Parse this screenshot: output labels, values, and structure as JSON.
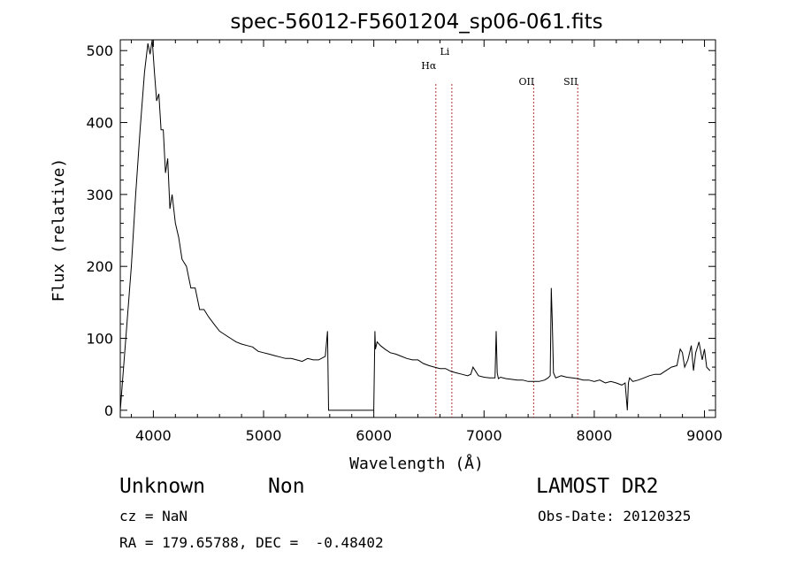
{
  "chart_data": {
    "type": "line",
    "title": "spec-56012-F5601204_sp06-061.fits",
    "xlabel": "Wavelength (Å)",
    "ylabel": "Flux (relative)",
    "xlim": [
      3700,
      9100
    ],
    "ylim": [
      -10,
      515
    ],
    "xticks": [
      4000,
      5000,
      6000,
      7000,
      8000,
      9000
    ],
    "yticks": [
      0,
      100,
      200,
      300,
      400,
      500
    ],
    "grid": false,
    "series": [
      {
        "x": [
          3700,
          3720,
          3760,
          3800,
          3840,
          3880,
          3920,
          3950,
          3970,
          3990,
          4010,
          4030,
          4050,
          4070,
          4090,
          4110,
          4130,
          4150,
          4170,
          4200,
          4230,
          4260,
          4300,
          4340,
          4380,
          4420,
          4460,
          4500,
          4550,
          4600,
          4650,
          4700,
          4750,
          4800,
          4850,
          4900,
          4950,
          5000,
          5050,
          5100,
          5150,
          5200,
          5250,
          5300,
          5350,
          5400,
          5450,
          5500,
          5560,
          5580,
          5590,
          5600,
          5800,
          6000,
          6010,
          6015,
          6030,
          6060,
          6100,
          6150,
          6200,
          6250,
          6300,
          6350,
          6400,
          6450,
          6500,
          6550,
          6600,
          6650,
          6700,
          6750,
          6800,
          6850,
          6880,
          6900,
          6950,
          7000,
          7050,
          7100,
          7110,
          7120,
          7130,
          7150,
          7200,
          7250,
          7300,
          7350,
          7400,
          7450,
          7500,
          7550,
          7580,
          7600,
          7610,
          7620,
          7630,
          7650,
          7700,
          7750,
          7800,
          7850,
          7900,
          7950,
          8000,
          8050,
          8100,
          8150,
          8200,
          8250,
          8280,
          8290,
          8300,
          8310,
          8320,
          8350,
          8400,
          8450,
          8500,
          8550,
          8600,
          8650,
          8700,
          8750,
          8780,
          8800,
          8820,
          8850,
          8880,
          8900,
          8920,
          8950,
          8980,
          9000,
          9020,
          9050
        ],
        "values": [
          0,
          40,
          120,
          200,
          300,
          390,
          470,
          510,
          495,
          515,
          470,
          430,
          440,
          390,
          390,
          330,
          350,
          280,
          300,
          260,
          240,
          210,
          200,
          170,
          170,
          140,
          140,
          130,
          120,
          110,
          105,
          100,
          95,
          92,
          90,
          88,
          82,
          80,
          78,
          76,
          74,
          72,
          72,
          70,
          68,
          72,
          70,
          70,
          75,
          110,
          0,
          0,
          0,
          0,
          110,
          85,
          95,
          90,
          85,
          80,
          78,
          75,
          72,
          70,
          70,
          65,
          62,
          60,
          58,
          58,
          54,
          52,
          50,
          48,
          50,
          60,
          48,
          46,
          45,
          45,
          110,
          52,
          44,
          46,
          44,
          43,
          42,
          42,
          40,
          40,
          40,
          42,
          45,
          48,
          170,
          120,
          52,
          45,
          48,
          46,
          45,
          44,
          42,
          42,
          40,
          42,
          38,
          40,
          38,
          35,
          38,
          20,
          0,
          38,
          45,
          40,
          42,
          45,
          48,
          50,
          50,
          55,
          60,
          62,
          85,
          80,
          60,
          70,
          90,
          55,
          80,
          95,
          70,
          85,
          60,
          55
        ]
      }
    ],
    "line_markers": [
      {
        "label": "Hα",
        "x": 6563
      },
      {
        "label": "Li",
        "x": 6708
      },
      {
        "label": "OII",
        "x": 7450
      },
      {
        "label": "SII",
        "x": 7850
      }
    ]
  },
  "info": {
    "object_class": "Unknown",
    "subclass": "Non",
    "survey": "LAMOST DR2",
    "cz": "cz = NaN",
    "obs_date": "Obs-Date: 20120325",
    "coords": "RA = 179.65788, DEC =  -0.48402"
  }
}
